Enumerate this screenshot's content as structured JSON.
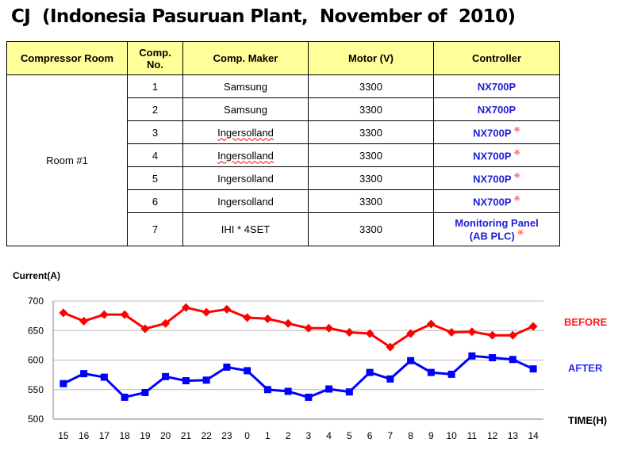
{
  "page": {
    "title": "CJ  (Indonesia Pasuruan Plant,  November of  2010)"
  },
  "table": {
    "headers": [
      "Compressor Room",
      "Comp.\nNo.",
      "Comp. Maker",
      "Motor (V)",
      "Controller"
    ],
    "room": "Room #1",
    "rows": [
      {
        "no": "1",
        "maker": "Samsung",
        "motor": "3300",
        "controller": "NX700P",
        "mark": ""
      },
      {
        "no": "2",
        "maker": "Samsung",
        "motor": "3300",
        "controller": "NX700P",
        "mark": ""
      },
      {
        "no": "3",
        "maker": "Ingersolland",
        "motor": "3300",
        "controller": "NX700P",
        "mark": "※"
      },
      {
        "no": "4",
        "maker": "Ingersolland",
        "motor": "3300",
        "controller": "NX700P",
        "mark": "※"
      },
      {
        "no": "5",
        "maker": "Ingersolland",
        "motor": "3300",
        "controller": "NX700P",
        "mark": "※"
      },
      {
        "no": "6",
        "maker": "Ingersolland",
        "motor": "3300",
        "controller": "NX700P",
        "mark": "※"
      },
      {
        "no": "7",
        "maker": "IHI * 4SET",
        "motor": "3300",
        "controller": "Monitoring Panel",
        "controller2": "(AB PLC)",
        "mark": "※"
      }
    ]
  },
  "chart_data": {
    "type": "line",
    "ylabel": "Current(A)",
    "xlabel": "TIME(H)",
    "categories": [
      "15",
      "16",
      "17",
      "18",
      "19",
      "20",
      "21",
      "22",
      "23",
      "0",
      "1",
      "2",
      "3",
      "4",
      "5",
      "6",
      "7",
      "8",
      "9",
      "10",
      "11",
      "12",
      "13",
      "14"
    ],
    "ylim": [
      500,
      700
    ],
    "yticks": [
      "500",
      "550",
      "600",
      "650",
      "700"
    ],
    "grid": true,
    "legend_placement": "right",
    "series": [
      {
        "name": "BEFORE",
        "color": "#ff0000",
        "marker": "diamond",
        "values": [
          680,
          666,
          677,
          677,
          653,
          662,
          689,
          681,
          686,
          672,
          670,
          662,
          654,
          654,
          647,
          645,
          622,
          645,
          661,
          647,
          648,
          642,
          642,
          657
        ]
      },
      {
        "name": "AFTER",
        "color": "#0000ff",
        "marker": "square",
        "values": [
          560,
          577,
          571,
          537,
          545,
          572,
          565,
          566,
          588,
          582,
          550,
          547,
          537,
          551,
          546,
          579,
          568,
          599,
          579,
          576,
          607,
          604,
          601,
          585
        ]
      }
    ]
  }
}
